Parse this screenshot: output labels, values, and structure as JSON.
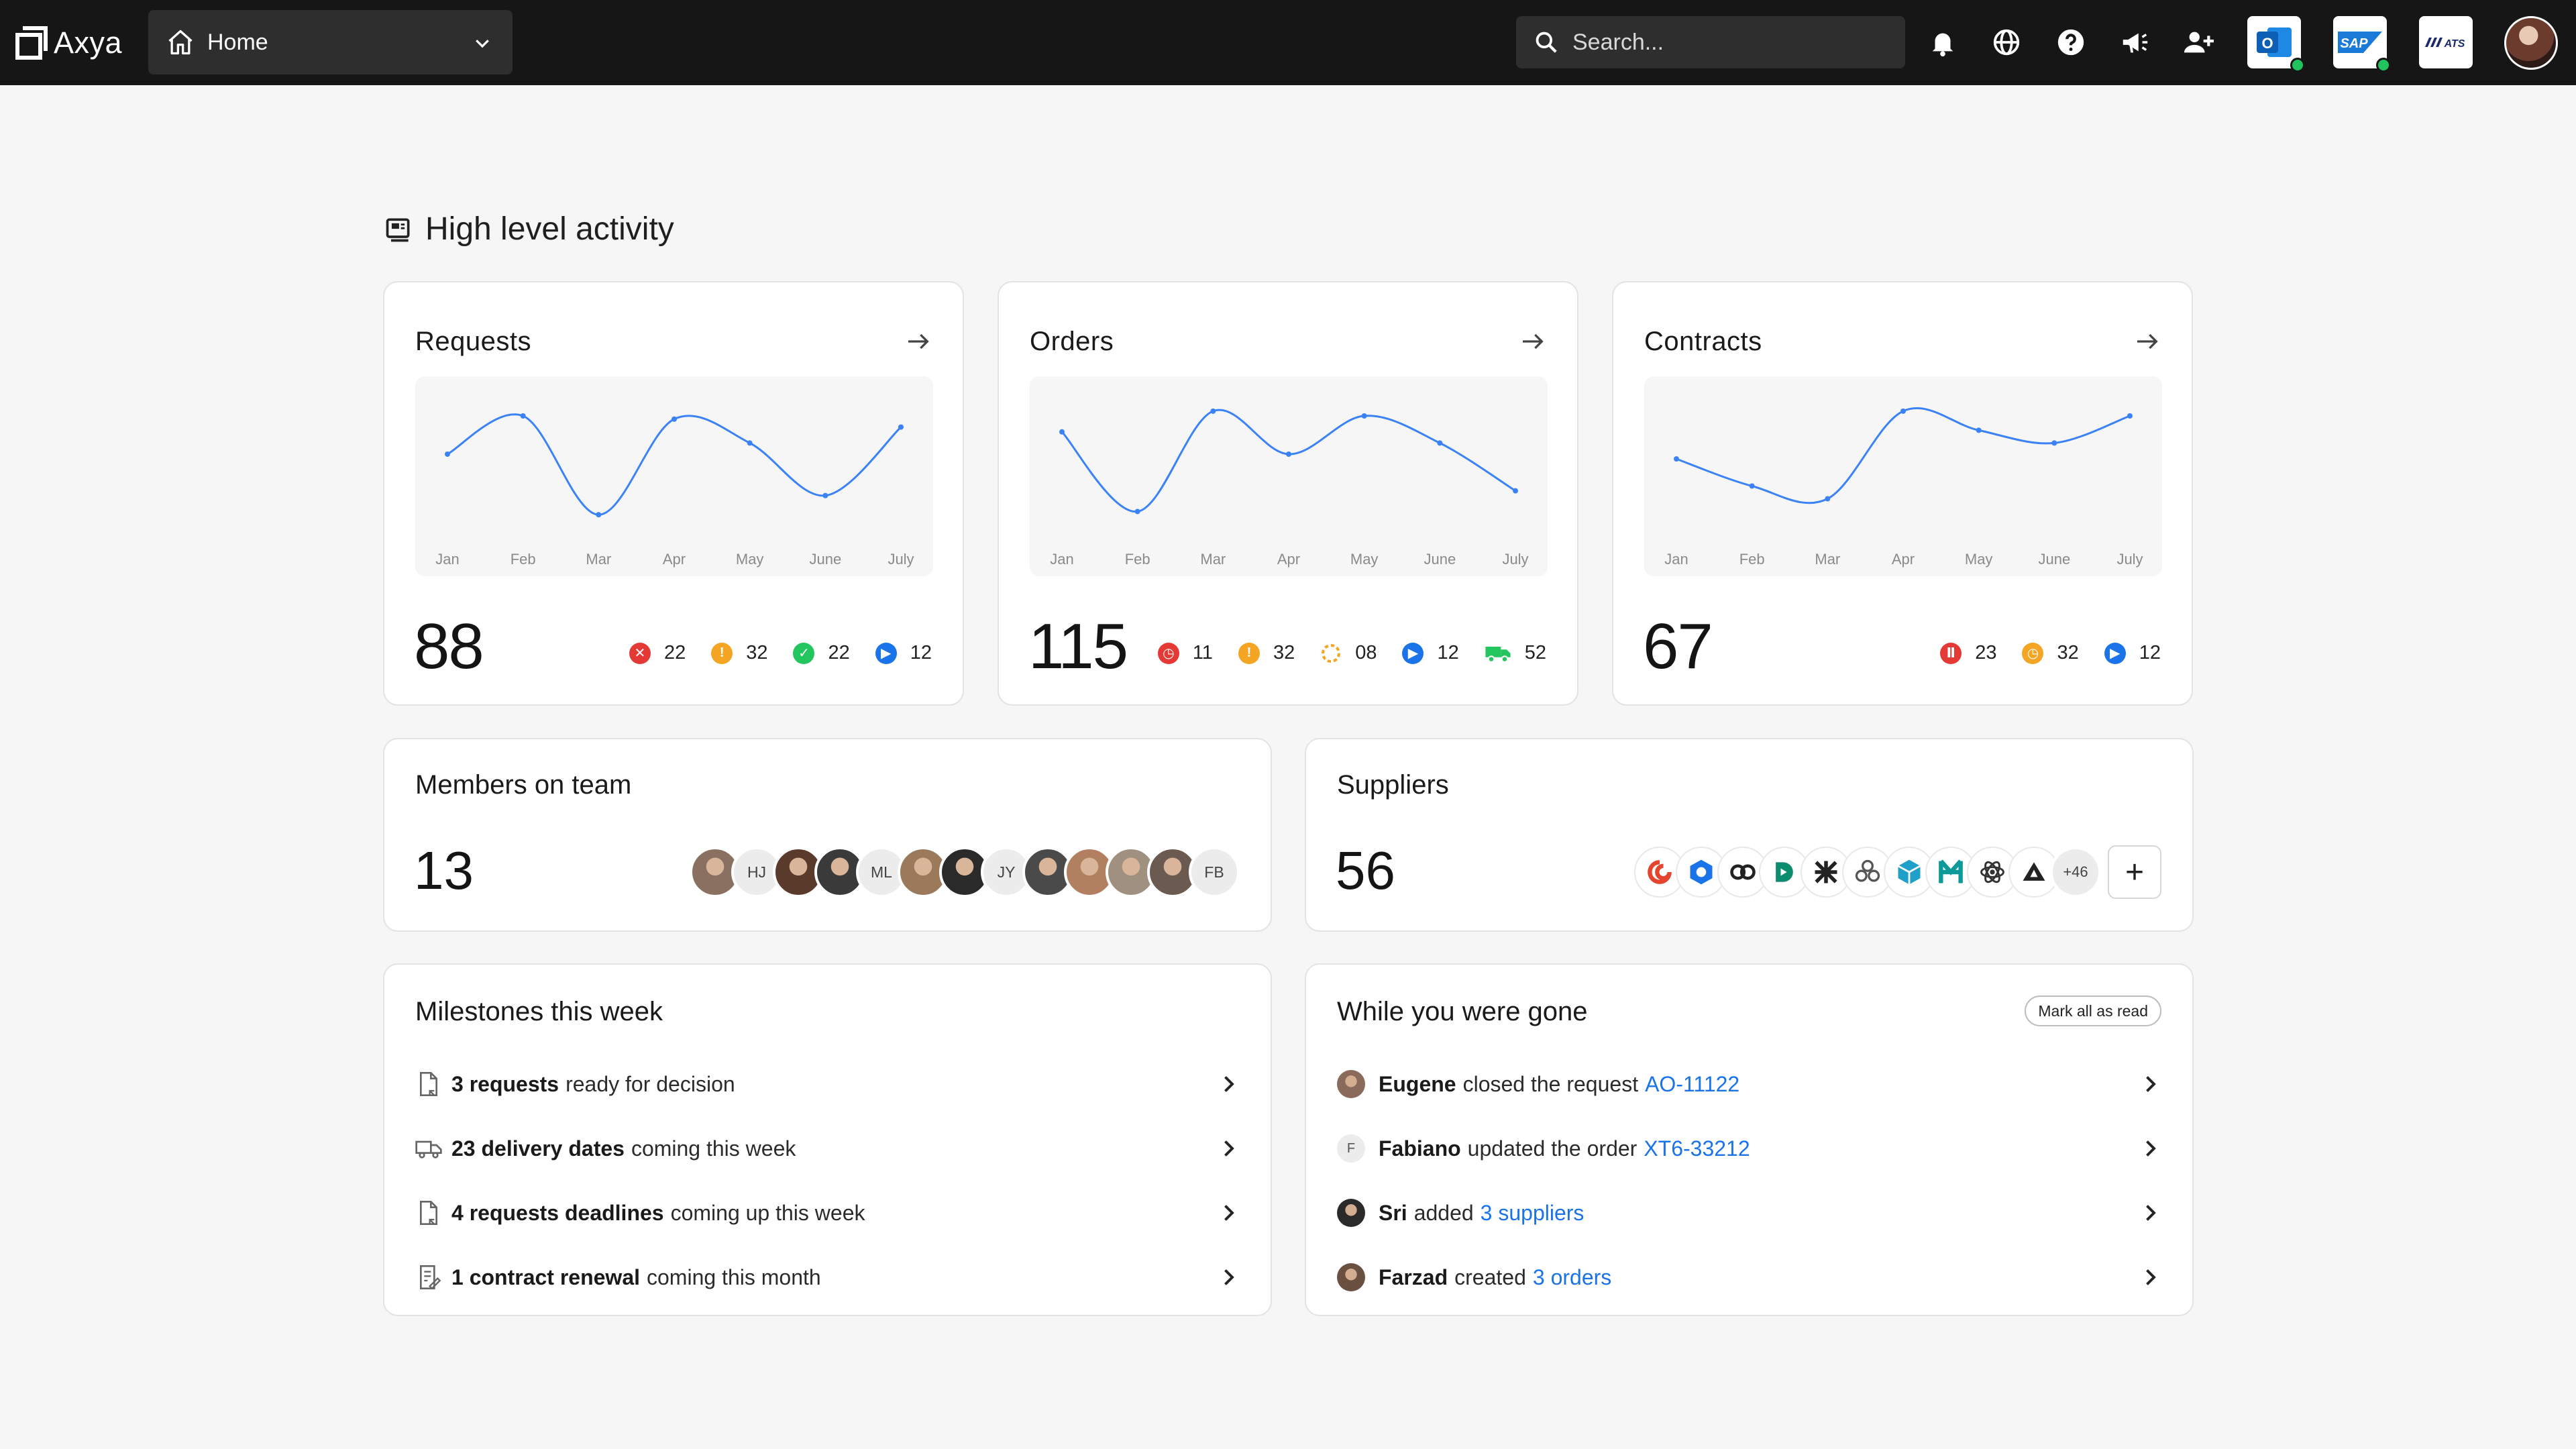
{
  "brand": {
    "name": "Axya"
  },
  "nav": {
    "location": "Home"
  },
  "search": {
    "placeholder": "Search..."
  },
  "toolbar": {
    "icons": [
      "bell-icon",
      "globe-icon",
      "help-icon",
      "megaphone-icon",
      "add-user-icon"
    ],
    "apps": [
      {
        "name": "Outlook",
        "label": "O",
        "status": "connected"
      },
      {
        "name": "SAP",
        "label": "SAP",
        "status": "connected"
      },
      {
        "name": "ATS",
        "label": "ATS",
        "status": ""
      }
    ]
  },
  "section": {
    "title": "High level activity"
  },
  "cards": [
    {
      "title": "Requests",
      "total": "88",
      "chart_data": {
        "type": "line",
        "categories": [
          "Jan",
          "Feb",
          "Mar",
          "Apr",
          "May",
          "June",
          "July"
        ],
        "values": [
          48,
          72,
          10,
          70,
          55,
          22,
          65
        ],
        "ylim": [
          0,
          80
        ]
      },
      "stats": [
        {
          "icon": "rejected-icon",
          "color": "#e53935",
          "value": "22"
        },
        {
          "icon": "pending-icon",
          "color": "#f5a524",
          "value": "32"
        },
        {
          "icon": "approved-icon",
          "color": "#22c55e",
          "value": "22"
        },
        {
          "icon": "in-progress-icon",
          "color": "#1a73e8",
          "value": "12"
        }
      ]
    },
    {
      "title": "Orders",
      "total": "115",
      "chart_data": {
        "type": "line",
        "categories": [
          "Jan",
          "Feb",
          "Mar",
          "Apr",
          "May",
          "June",
          "July"
        ],
        "values": [
          62,
          12,
          75,
          48,
          72,
          55,
          25
        ],
        "ylim": [
          0,
          80
        ]
      },
      "stats": [
        {
          "icon": "late-icon",
          "color": "#e53935",
          "value": "11"
        },
        {
          "icon": "pending-icon",
          "color": "#f5a524",
          "value": "32"
        },
        {
          "icon": "processing-icon",
          "color": "#f5a524",
          "value": "08"
        },
        {
          "icon": "in-progress-icon",
          "color": "#1a73e8",
          "value": "12"
        },
        {
          "icon": "delivery-icon",
          "color": "#22c55e",
          "value": "52"
        }
      ]
    },
    {
      "title": "Contracts",
      "total": "67",
      "chart_data": {
        "type": "line",
        "categories": [
          "Jan",
          "Feb",
          "Mar",
          "Apr",
          "May",
          "June",
          "July"
        ],
        "values": [
          45,
          28,
          20,
          75,
          63,
          55,
          72
        ],
        "ylim": [
          0,
          80
        ]
      },
      "stats": [
        {
          "icon": "paused-icon",
          "color": "#e53935",
          "value": "23"
        },
        {
          "icon": "expiring-icon",
          "color": "#f5a524",
          "value": "32"
        },
        {
          "icon": "in-progress-icon",
          "color": "#1a73e8",
          "value": "12"
        }
      ]
    }
  ],
  "members": {
    "title": "Members on team",
    "count": "13",
    "avatars": [
      {
        "type": "photo",
        "color": "#8a7060"
      },
      {
        "type": "initials",
        "text": "HJ"
      },
      {
        "type": "photo",
        "color": "#5a3a2a"
      },
      {
        "type": "photo",
        "color": "#3a3a3a"
      },
      {
        "type": "initials",
        "text": "ML"
      },
      {
        "type": "photo",
        "color": "#9a7a5a"
      },
      {
        "type": "photo",
        "color": "#2a2a2a"
      },
      {
        "type": "initials",
        "text": "JY"
      },
      {
        "type": "photo",
        "color": "#4a4a4a"
      },
      {
        "type": "photo",
        "color": "#b08060"
      },
      {
        "type": "photo",
        "color": "#a09080"
      },
      {
        "type": "photo",
        "color": "#6a5a50"
      },
      {
        "type": "initials",
        "text": "FB"
      }
    ]
  },
  "suppliers": {
    "title": "Suppliers",
    "count": "56",
    "logos": [
      {
        "icon": "supplier-swirl-icon",
        "color": "#e5452f"
      },
      {
        "icon": "supplier-hex-icon",
        "color": "#1a73e8"
      },
      {
        "icon": "supplier-rings-icon",
        "color": "#222222"
      },
      {
        "icon": "supplier-d-icon",
        "color": "#0e8c6e"
      },
      {
        "icon": "supplier-cross-icon",
        "color": "#222222"
      },
      {
        "icon": "supplier-flower-icon",
        "color": "#555555"
      },
      {
        "icon": "supplier-cube-icon",
        "color": "#1fa0c8"
      },
      {
        "icon": "supplier-h-icon",
        "color": "#0f9a9a"
      },
      {
        "icon": "supplier-atom-icon",
        "color": "#333333"
      },
      {
        "icon": "supplier-triangle-icon",
        "color": "#222222"
      }
    ],
    "more": "+46",
    "add_label": "+"
  },
  "milestones": {
    "title": "Milestones this week",
    "items": [
      {
        "icon": "request-doc-icon",
        "bold": "3 requests",
        "rest": "ready for decision"
      },
      {
        "icon": "truck-icon",
        "bold": "23 delivery dates",
        "rest": "coming this week"
      },
      {
        "icon": "request-doc-icon",
        "bold": "4 requests deadlines",
        "rest": "coming up this week"
      },
      {
        "icon": "contract-icon",
        "bold": "1 contract renewal",
        "rest": "coming this month"
      }
    ]
  },
  "activity": {
    "title": "While you were gone",
    "mark_all": "Mark all as read",
    "items": [
      {
        "avatar": "photo",
        "avatar_color": "#8a6a5a",
        "bold": "Eugene",
        "rest": "closed the request",
        "link": "AO-11122"
      },
      {
        "avatar": "initial",
        "initial": "F",
        "bold": "Fabiano",
        "rest": "updated the order",
        "link": "XT6-33212"
      },
      {
        "avatar": "photo",
        "avatar_color": "#2a2a2a",
        "bold": "Sri",
        "rest": "added",
        "link": "3 suppliers"
      },
      {
        "avatar": "photo",
        "avatar_color": "#6a5040",
        "bold": "Farzad",
        "rest": "created",
        "link": "3 orders"
      }
    ]
  }
}
